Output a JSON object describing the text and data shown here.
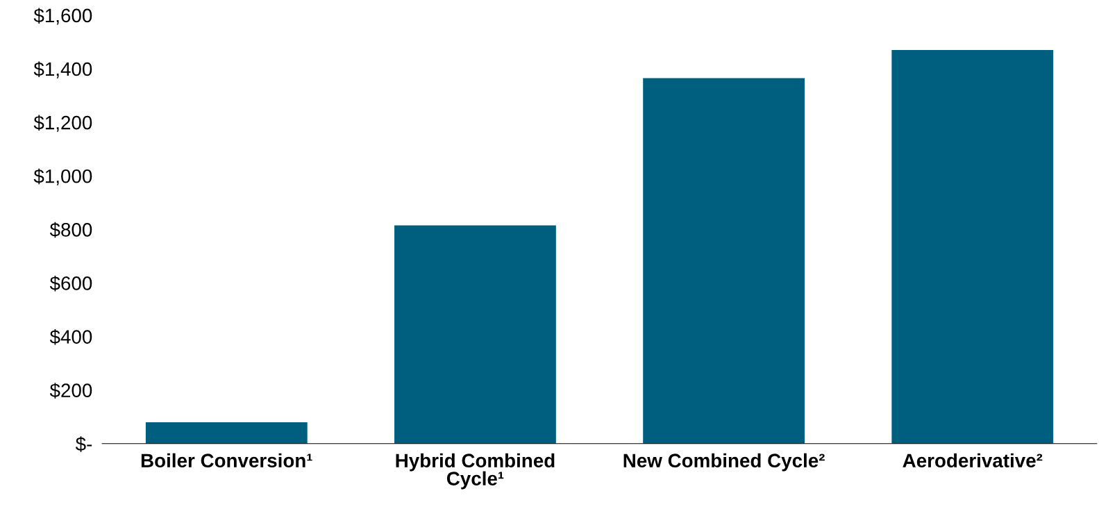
{
  "chart_data": {
    "type": "bar",
    "categories": [
      "Boiler Conversion¹",
      "Hybrid Combined\nCycle¹",
      "New Combined Cycle²",
      "Aeroderivative²"
    ],
    "values": [
      80,
      815,
      1365,
      1470
    ],
    "color": "#005f7f",
    "ylim": [
      0,
      1600
    ],
    "yticks": [
      {
        "value": 0,
        "label": "$-"
      },
      {
        "value": 200,
        "label": "$200"
      },
      {
        "value": 400,
        "label": "$400"
      },
      {
        "value": 600,
        "label": "$600"
      },
      {
        "value": 800,
        "label": "$800"
      },
      {
        "value": 1000,
        "label": "$1,000"
      },
      {
        "value": 1200,
        "label": "$1,200"
      },
      {
        "value": 1400,
        "label": "$1,400"
      },
      {
        "value": 1600,
        "label": "$1,600"
      }
    ],
    "grid": false,
    "legend": false
  }
}
